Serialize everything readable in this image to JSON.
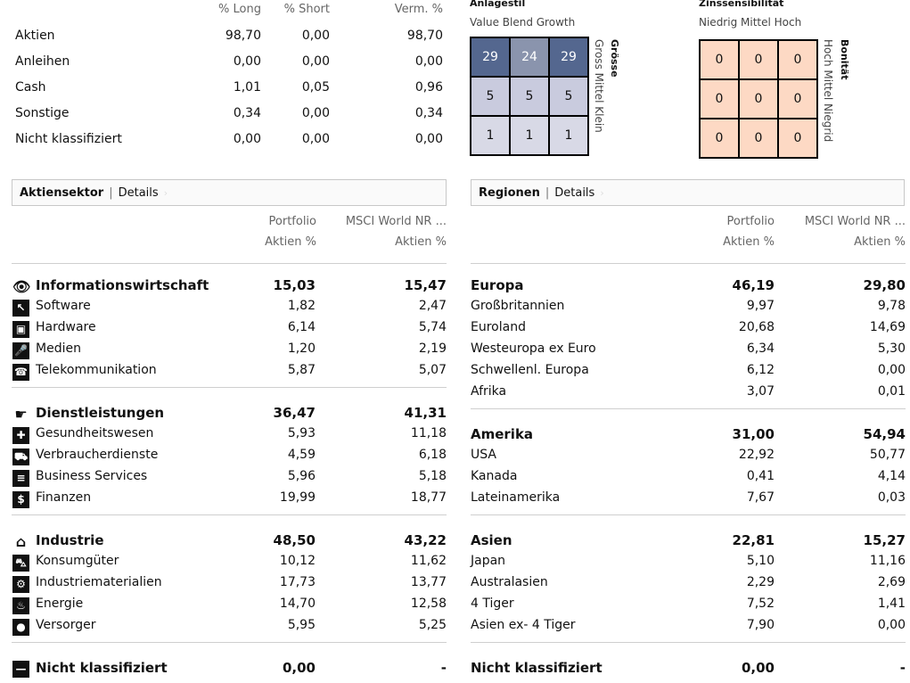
{
  "allocation": {
    "headers": {
      "long": "% Long",
      "short": "% Short",
      "net": "Verm. %"
    },
    "rows": [
      {
        "label": "Aktien",
        "long": "98,70",
        "short": "0,00",
        "net": "98,70"
      },
      {
        "label": "Anleihen",
        "long": "0,00",
        "short": "0,00",
        "net": "0,00"
      },
      {
        "label": "Cash",
        "long": "1,01",
        "short": "0,05",
        "net": "0,96"
      },
      {
        "label": "Sonstige",
        "long": "0,34",
        "short": "0,00",
        "net": "0,34"
      },
      {
        "label": "Nicht klassifiziert",
        "long": "0,00",
        "short": "0,00",
        "net": "0,00"
      }
    ]
  },
  "equity_style": {
    "title": "Anlagestil",
    "columns": "Value Blend Growth",
    "side_title": "Grösse",
    "side_labels": "Gross Mittel Klein",
    "cells": [
      "29",
      "24",
      "29",
      "5",
      "5",
      "5",
      "1",
      "1",
      "1"
    ],
    "colors": [
      "#54678f",
      "#8a94ad",
      "#54678f",
      "#c9cbde",
      "#c9cbde",
      "#c9cbde",
      "#d8d9e6",
      "#d8d9e6",
      "#d8d9e6"
    ]
  },
  "fixed_income_style": {
    "title": "Zinssensibilität",
    "columns": "Niedrig Mittel Hoch",
    "side_title": "Bonität",
    "side_labels": "Hoch Mittel Niegrid",
    "cells": [
      "0",
      "0",
      "0",
      "0",
      "0",
      "0",
      "0",
      "0",
      "0"
    ],
    "cell_color": "#fdd9c4"
  },
  "sector": {
    "tab": "Aktiensektor",
    "details": "Details",
    "col1": {
      "line1": "Portfolio",
      "line2": "Aktien %"
    },
    "col2": {
      "line1": "MSCI World NR ...",
      "line2": "Aktien %"
    },
    "groups": [
      {
        "label": "Informationswirtschaft",
        "icon": "eye-icon",
        "glyph": "👁",
        "v1": "15,03",
        "v2": "15,47",
        "items": [
          {
            "label": "Software",
            "icon": "cursor-icon",
            "glyph": "↖",
            "v1": "1,82",
            "v2": "2,47"
          },
          {
            "label": "Hardware",
            "icon": "computer-icon",
            "glyph": "▣",
            "v1": "6,14",
            "v2": "5,74"
          },
          {
            "label": "Medien",
            "icon": "microphone-icon",
            "glyph": "🎤",
            "v1": "1,20",
            "v2": "2,19"
          },
          {
            "label": "Telekommunikation",
            "icon": "phone-icon",
            "glyph": "☎",
            "v1": "5,87",
            "v2": "5,07"
          }
        ]
      },
      {
        "label": "Dienstleistungen",
        "icon": "hand-icon",
        "glyph": "☛",
        "v1": "36,47",
        "v2": "41,31",
        "items": [
          {
            "label": "Gesundheitswesen",
            "icon": "pill-icon",
            "glyph": "✚",
            "v1": "5,93",
            "v2": "11,18"
          },
          {
            "label": "Verbraucherdienste",
            "icon": "cart-icon",
            "glyph": "⛟",
            "v1": "4,59",
            "v2": "6,18"
          },
          {
            "label": "Business Services",
            "icon": "document-icon",
            "glyph": "≡",
            "v1": "5,96",
            "v2": "5,18"
          },
          {
            "label": "Finanzen",
            "icon": "dollar-icon",
            "glyph": "$",
            "v1": "19,99",
            "v2": "18,77"
          }
        ]
      },
      {
        "label": "Industrie",
        "icon": "factory-icon",
        "glyph": "⌂",
        "v1": "48,50",
        "v2": "43,22",
        "items": [
          {
            "label": "Konsumgüter",
            "icon": "car-icon",
            "glyph": "⛍",
            "v1": "10,12",
            "v2": "11,62"
          },
          {
            "label": "Industriematerialien",
            "icon": "gear-icon",
            "glyph": "⚙",
            "v1": "17,73",
            "v2": "13,77"
          },
          {
            "label": "Energie",
            "icon": "flame-icon",
            "glyph": "♨",
            "v1": "14,70",
            "v2": "12,58"
          },
          {
            "label": "Versorger",
            "icon": "lightbulb-icon",
            "glyph": "●",
            "v1": "5,95",
            "v2": "5,25"
          }
        ]
      }
    ],
    "unclassified": {
      "label": "Nicht klassifiziert",
      "icon": "minus-icon",
      "glyph": "—",
      "v1": "0,00",
      "v2": "-"
    }
  },
  "regions": {
    "tab": "Regionen",
    "details": "Details",
    "col1": {
      "line1": "Portfolio",
      "line2": "Aktien %"
    },
    "col2": {
      "line1": "MSCI World NR ...",
      "line2": "Aktien %"
    },
    "groups": [
      {
        "label": "Europa",
        "v1": "46,19",
        "v2": "29,80",
        "items": [
          {
            "label": "Großbritannien",
            "v1": "9,97",
            "v2": "9,78"
          },
          {
            "label": "Euroland",
            "v1": "20,68",
            "v2": "14,69"
          },
          {
            "label": "Westeuropa ex Euro",
            "v1": "6,34",
            "v2": "5,30"
          },
          {
            "label": "Schwellenl. Europa",
            "v1": "6,12",
            "v2": "0,00"
          },
          {
            "label": "Afrika",
            "v1": "3,07",
            "v2": "0,01"
          }
        ]
      },
      {
        "label": "Amerika",
        "v1": "31,00",
        "v2": "54,94",
        "items": [
          {
            "label": "USA",
            "v1": "22,92",
            "v2": "50,77"
          },
          {
            "label": "Kanada",
            "v1": "0,41",
            "v2": "4,14"
          },
          {
            "label": "Lateinamerika",
            "v1": "7,67",
            "v2": "0,03"
          }
        ]
      },
      {
        "label": "Asien",
        "v1": "22,81",
        "v2": "15,27",
        "items": [
          {
            "label": "Japan",
            "v1": "5,10",
            "v2": "11,16"
          },
          {
            "label": "Australasien",
            "v1": "2,29",
            "v2": "2,69"
          },
          {
            "label": "4 Tiger",
            "v1": "7,52",
            "v2": "1,41"
          },
          {
            "label": "Asien ex- 4 Tiger",
            "v1": "7,90",
            "v2": "0,00"
          }
        ]
      }
    ],
    "unclassified": {
      "label": "Nicht klassifiziert",
      "v1": "0,00",
      "v2": "-"
    }
  }
}
